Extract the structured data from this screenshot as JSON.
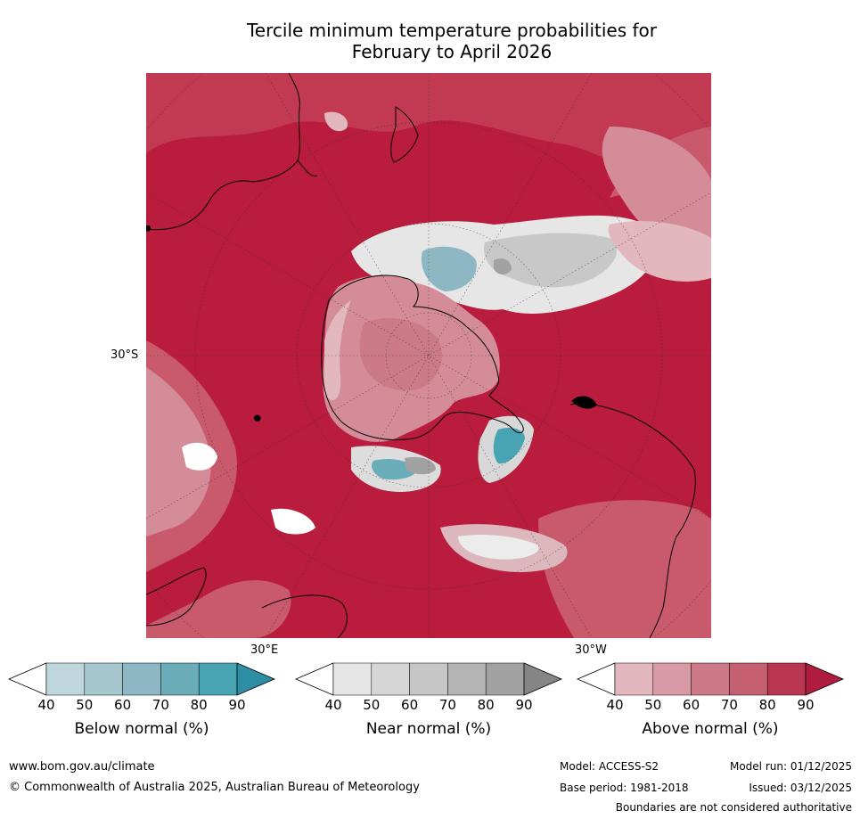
{
  "title_line1": "Tercile minimum temperature probabilities for",
  "title_line2": "February to April 2026",
  "map_labels": {
    "lat_30s": "30°S",
    "lon_30e": "30°E",
    "lon_30w": "30°W"
  },
  "colorbars": [
    {
      "name": "Below normal (%)",
      "ticks": [
        "40",
        "50",
        "60",
        "70",
        "80",
        "90"
      ],
      "colors": [
        "#ffffff",
        "#bed6dc",
        "#a6c7ce",
        "#8cb7c3",
        "#6aadb8",
        "#48a3b2",
        "#2e8fa4"
      ]
    },
    {
      "name": "Near normal (%)",
      "ticks": [
        "40",
        "50",
        "60",
        "70",
        "80",
        "90"
      ],
      "colors": [
        "#ffffff",
        "#e6e6e6",
        "#d6d6d6",
        "#c6c6c6",
        "#b4b4b4",
        "#a2a2a2",
        "#858585"
      ]
    },
    {
      "name": "Above normal (%)",
      "ticks": [
        "40",
        "50",
        "60",
        "70",
        "80",
        "90"
      ],
      "colors": [
        "#ffffff",
        "#e2b8be",
        "#d89aa4",
        "#cc7a87",
        "#c4606f",
        "#b93651",
        "#b01c3d"
      ]
    }
  ],
  "footer": {
    "website": "www.bom.gov.au/climate",
    "copyright": "© Commonwealth of Australia 2025, Australian Bureau of Meteorology",
    "model": "Model: ACCESS-S2",
    "base_period": "Base period: 1981-2018",
    "model_run": "Model run: 01/12/2025",
    "issued": "Issued: 03/12/2025",
    "disclaimer": "Boundaries are not considered authoritative"
  }
}
